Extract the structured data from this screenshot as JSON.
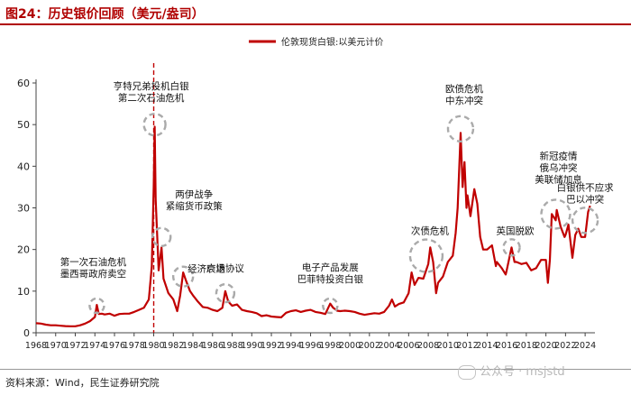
{
  "header": {
    "title": "图24：历史银价回顾（美元/盎司）"
  },
  "footer": {
    "source": "资料来源：Wind，民生证券研究院",
    "watermark": "公众号 · msjstd"
  },
  "chart_data": {
    "type": "line",
    "series": [
      {
        "name": "伦敦现货白银:以美元计价",
        "color": "#c00000",
        "points": [
          [
            1968.0,
            2.3
          ],
          [
            1968.5,
            2.2
          ],
          [
            1969.0,
            1.95
          ],
          [
            1969.5,
            1.8
          ],
          [
            1970.0,
            1.8
          ],
          [
            1970.5,
            1.7
          ],
          [
            1971.0,
            1.6
          ],
          [
            1971.5,
            1.55
          ],
          [
            1972.0,
            1.55
          ],
          [
            1972.5,
            1.8
          ],
          [
            1973.0,
            2.2
          ],
          [
            1973.5,
            2.8
          ],
          [
            1974.0,
            3.8
          ],
          [
            1974.2,
            6.7
          ],
          [
            1974.4,
            4.5
          ],
          [
            1974.7,
            4.6
          ],
          [
            1975.0,
            4.4
          ],
          [
            1975.5,
            4.6
          ],
          [
            1976.0,
            4.1
          ],
          [
            1976.5,
            4.5
          ],
          [
            1977.0,
            4.6
          ],
          [
            1977.5,
            4.6
          ],
          [
            1978.0,
            5.0
          ],
          [
            1978.5,
            5.5
          ],
          [
            1979.0,
            6.0
          ],
          [
            1979.5,
            8.0
          ],
          [
            1979.8,
            16.0
          ],
          [
            1980.0,
            35.0
          ],
          [
            1980.1,
            49.5
          ],
          [
            1980.2,
            32.0
          ],
          [
            1980.5,
            15.0
          ],
          [
            1980.8,
            20.5
          ],
          [
            1981.0,
            13.0
          ],
          [
            1981.5,
            9.5
          ],
          [
            1982.0,
            8.0
          ],
          [
            1982.4,
            5.2
          ],
          [
            1982.7,
            9.0
          ],
          [
            1983.0,
            14.5
          ],
          [
            1983.3,
            12.5
          ],
          [
            1983.7,
            10.0
          ],
          [
            1984.0,
            9.0
          ],
          [
            1984.5,
            7.5
          ],
          [
            1985.0,
            6.2
          ],
          [
            1985.5,
            6.0
          ],
          [
            1986.0,
            5.5
          ],
          [
            1986.5,
            5.2
          ],
          [
            1987.0,
            6.0
          ],
          [
            1987.3,
            10.0
          ],
          [
            1987.6,
            7.5
          ],
          [
            1988.0,
            6.5
          ],
          [
            1988.5,
            6.8
          ],
          [
            1989.0,
            5.5
          ],
          [
            1989.5,
            5.2
          ],
          [
            1990.0,
            5.0
          ],
          [
            1990.5,
            4.7
          ],
          [
            1991.0,
            4.0
          ],
          [
            1991.5,
            4.2
          ],
          [
            1992.0,
            3.9
          ],
          [
            1992.5,
            3.8
          ],
          [
            1993.0,
            3.7
          ],
          [
            1993.5,
            4.8
          ],
          [
            1994.0,
            5.2
          ],
          [
            1994.5,
            5.4
          ],
          [
            1995.0,
            5.0
          ],
          [
            1995.5,
            5.3
          ],
          [
            1996.0,
            5.5
          ],
          [
            1996.5,
            5.0
          ],
          [
            1997.0,
            4.8
          ],
          [
            1997.5,
            4.5
          ],
          [
            1998.0,
            7.0
          ],
          [
            1998.3,
            6.0
          ],
          [
            1998.7,
            5.3
          ],
          [
            1999.0,
            5.2
          ],
          [
            1999.5,
            5.3
          ],
          [
            2000.0,
            5.2
          ],
          [
            2000.5,
            5.0
          ],
          [
            2001.0,
            4.6
          ],
          [
            2001.5,
            4.3
          ],
          [
            2002.0,
            4.5
          ],
          [
            2002.5,
            4.7
          ],
          [
            2003.0,
            4.6
          ],
          [
            2003.5,
            5.0
          ],
          [
            2004.0,
            6.5
          ],
          [
            2004.3,
            8.0
          ],
          [
            2004.6,
            6.3
          ],
          [
            2005.0,
            6.9
          ],
          [
            2005.5,
            7.3
          ],
          [
            2006.0,
            9.5
          ],
          [
            2006.3,
            14.5
          ],
          [
            2006.6,
            11.5
          ],
          [
            2007.0,
            13.2
          ],
          [
            2007.5,
            13.0
          ],
          [
            2008.0,
            16.5
          ],
          [
            2008.2,
            20.5
          ],
          [
            2008.5,
            17.0
          ],
          [
            2008.8,
            9.5
          ],
          [
            2009.0,
            12.0
          ],
          [
            2009.5,
            13.5
          ],
          [
            2010.0,
            17.0
          ],
          [
            2010.5,
            18.5
          ],
          [
            2010.8,
            24.0
          ],
          [
            2011.0,
            30.0
          ],
          [
            2011.3,
            48.0
          ],
          [
            2011.5,
            35.0
          ],
          [
            2011.7,
            41.0
          ],
          [
            2011.9,
            30.0
          ],
          [
            2012.0,
            33.0
          ],
          [
            2012.3,
            28.0
          ],
          [
            2012.7,
            34.5
          ],
          [
            2013.0,
            31.0
          ],
          [
            2013.3,
            23.0
          ],
          [
            2013.6,
            20.0
          ],
          [
            2014.0,
            20.0
          ],
          [
            2014.5,
            21.0
          ],
          [
            2014.9,
            16.0
          ],
          [
            2015.0,
            17.0
          ],
          [
            2015.5,
            15.5
          ],
          [
            2015.9,
            14.0
          ],
          [
            2016.0,
            15.0
          ],
          [
            2016.5,
            20.5
          ],
          [
            2016.8,
            17.0
          ],
          [
            2017.0,
            17.0
          ],
          [
            2017.5,
            16.5
          ],
          [
            2018.0,
            16.8
          ],
          [
            2018.5,
            15.0
          ],
          [
            2019.0,
            15.5
          ],
          [
            2019.5,
            17.5
          ],
          [
            2020.0,
            17.5
          ],
          [
            2020.2,
            12.0
          ],
          [
            2020.4,
            17.5
          ],
          [
            2020.6,
            28.5
          ],
          [
            2021.0,
            27.0
          ],
          [
            2021.1,
            29.5
          ],
          [
            2021.5,
            25.5
          ],
          [
            2021.9,
            23.0
          ],
          [
            2022.0,
            23.5
          ],
          [
            2022.3,
            26.0
          ],
          [
            2022.7,
            18.0
          ],
          [
            2023.0,
            23.5
          ],
          [
            2023.3,
            25.0
          ],
          [
            2023.6,
            23.0
          ],
          [
            2024.0,
            23.0
          ],
          [
            2024.3,
            29.0
          ],
          [
            2024.5,
            30.5
          ]
        ]
      }
    ],
    "xlim": [
      1968,
      2025
    ],
    "ylim": [
      0,
      60
    ],
    "x_ticks": [
      "1968",
      "1970",
      "1972",
      "1974",
      "1976",
      "1978",
      "1980",
      "1982",
      "1984",
      "1986",
      "1988",
      "1990",
      "1992",
      "1994",
      "1996",
      "1998",
      "2000",
      "2002",
      "2004",
      "2006",
      "2008",
      "2010",
      "2012",
      "2014",
      "2016",
      "2018",
      "2020",
      "2022",
      "2024"
    ],
    "y_ticks": [
      0,
      10,
      20,
      30,
      40,
      50,
      60
    ],
    "legend_position": "top-center",
    "grid": false,
    "reference_line": {
      "x": 1980,
      "color": "#c00000",
      "style": "dashed"
    },
    "annotations": [
      {
        "lines": [
          "第一次石油危机",
          "墨西哥政府卖空"
        ],
        "x": 1974.2,
        "y": 6.5
      },
      {
        "lines": [
          "亨特兄弟投机白银",
          "第二次石油危机"
        ],
        "x": 1980.1,
        "y": 50
      },
      {
        "lines": [
          "两伊战争",
          "紧缩货币政策"
        ],
        "x": 1980.8,
        "y": 23
      },
      {
        "lines": [
          "经济衰退"
        ],
        "x": 1983.0,
        "y": 13.5
      },
      {
        "lines": [
          "广场协议"
        ],
        "x": 1987.3,
        "y": 9.5
      },
      {
        "lines": [
          "电子产品发展",
          "巴菲特投资白银"
        ],
        "x": 1998.0,
        "y": 6.5
      },
      {
        "lines": [
          "次债危机"
        ],
        "x": 2007.8,
        "y": 18.5
      },
      {
        "lines": [
          "欧债危机",
          "中东冲突"
        ],
        "x": 2011.3,
        "y": 49
      },
      {
        "lines": [
          "英国脱欧"
        ],
        "x": 2016.5,
        "y": 20.5
      },
      {
        "lines": [
          "新冠疫情",
          "俄乌冲突",
          "美联储加息"
        ],
        "x": 2021.0,
        "y": 28.5
      },
      {
        "lines": [
          "白银供不应求",
          "巴以冲突"
        ],
        "x": 2024.0,
        "y": 27
      }
    ]
  }
}
